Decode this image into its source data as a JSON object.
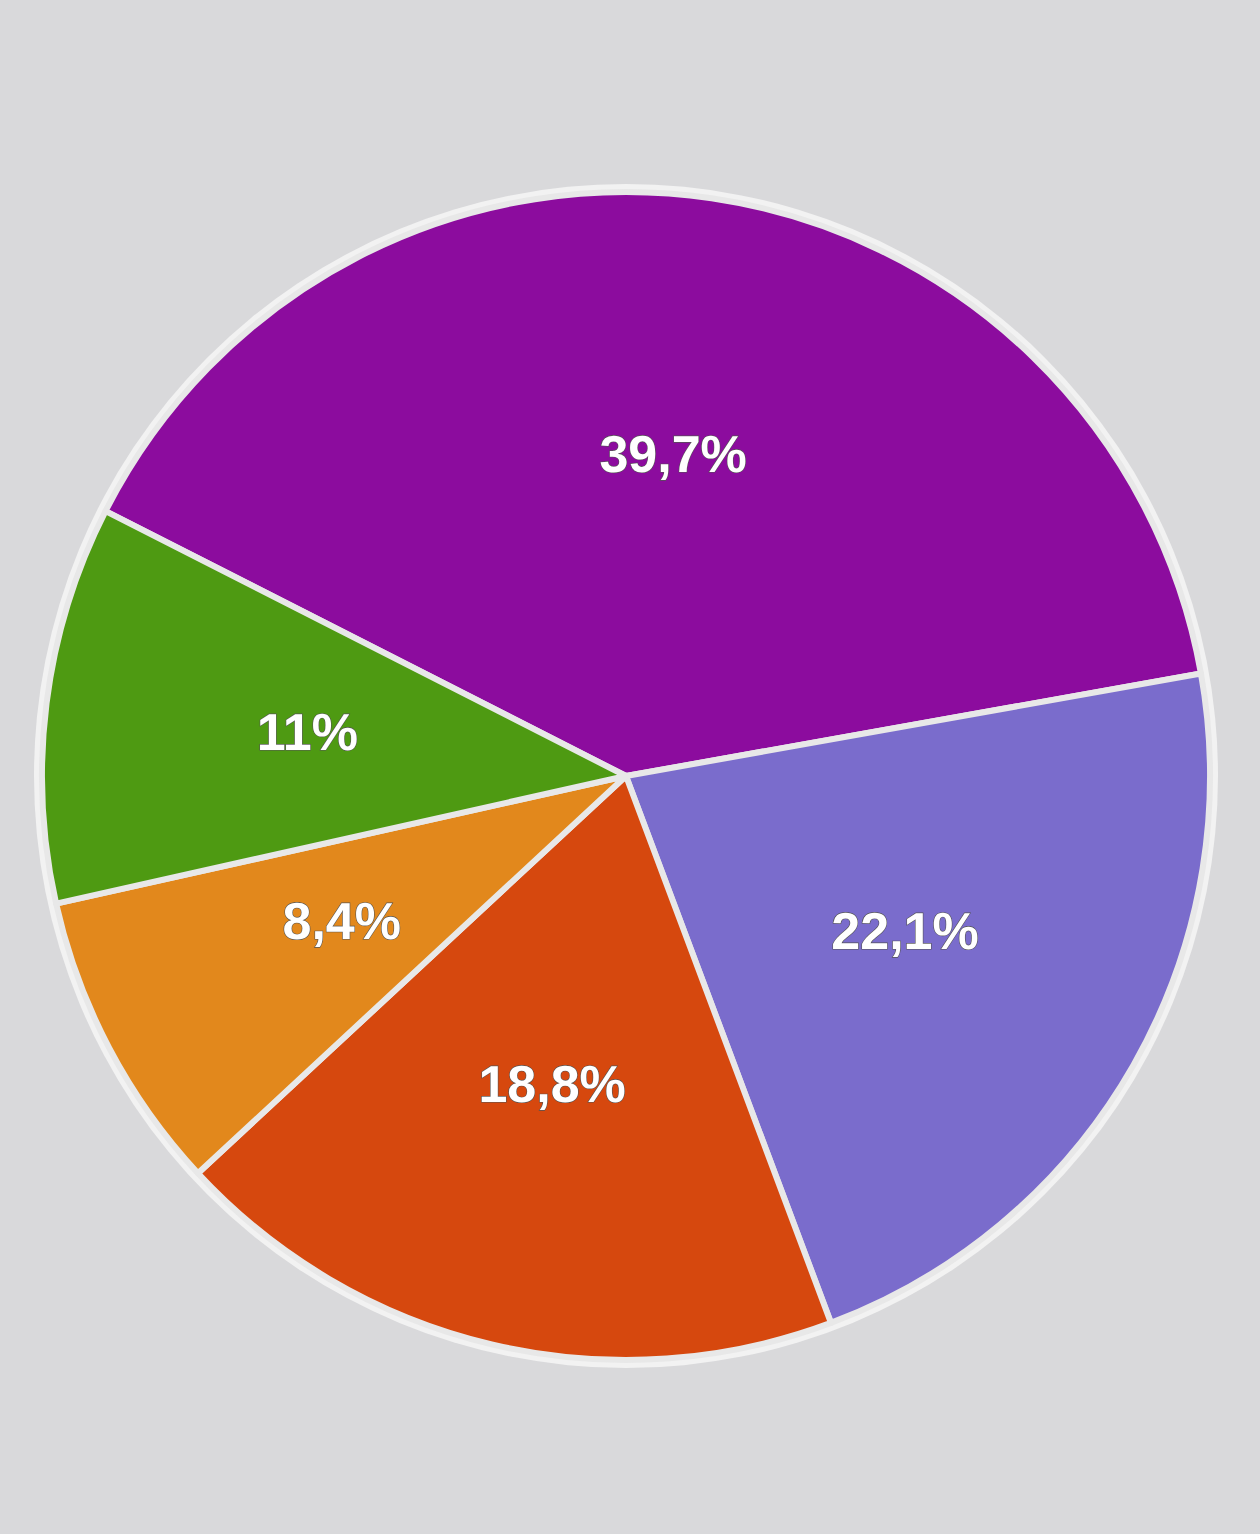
{
  "chart_data": {
    "type": "pie",
    "categories": [
      null,
      null,
      null,
      null,
      null
    ],
    "values": [
      39.7,
      22.1,
      18.8,
      8.4,
      11
    ],
    "colors": [
      "#8c0c9e",
      "#7a6ccc",
      "#d6480e",
      "#e2881c",
      "#4e9a12"
    ],
    "value_labels": [
      "39,7%",
      "22,1%",
      "18,8%",
      "8,4%",
      "11%"
    ]
  }
}
